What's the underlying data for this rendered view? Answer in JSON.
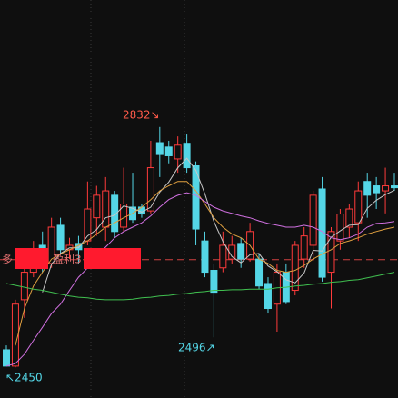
{
  "chart_data": {
    "type": "candlestick",
    "ylim": [
      2399,
      3035
    ],
    "up_color": "#ff3b3b",
    "down_color": "#54d6e6",
    "open": [
      2476,
      2450,
      2556,
      2600,
      2643,
      2614,
      2675,
      2636,
      2646,
      2650,
      2687,
      2672,
      2723,
      2672,
      2704,
      2704,
      2698,
      2807,
      2800,
      2781,
      2806,
      2770,
      2650,
      2603,
      2607,
      2621,
      2646,
      2621,
      2621,
      2582,
      2549,
      2600,
      2571,
      2621,
      2643,
      2733,
      2600,
      2650,
      2672,
      2679,
      2745,
      2738,
      2730,
      2738
    ],
    "high": [
      2483,
      2556,
      2614,
      2650,
      2665,
      2687,
      2687,
      2655,
      2658,
      2745,
      2738,
      2752,
      2730,
      2767,
      2759,
      2709,
      2810,
      2832,
      2810,
      2817,
      2820,
      2777,
      2665,
      2614,
      2665,
      2658,
      2655,
      2679,
      2629,
      2592,
      2614,
      2614,
      2650,
      2672,
      2730,
      2752,
      2672,
      2701,
      2709,
      2745,
      2759,
      2752,
      2767,
      2759
    ],
    "low": [
      2450,
      2448,
      2527,
      2592,
      2600,
      2607,
      2629,
      2621,
      2614,
      2643,
      2658,
      2650,
      2655,
      2665,
      2679,
      2687,
      2694,
      2752,
      2774,
      2759,
      2759,
      2643,
      2592,
      2496,
      2600,
      2614,
      2607,
      2617,
      2573,
      2534,
      2505,
      2549,
      2563,
      2607,
      2621,
      2585,
      2542,
      2636,
      2655,
      2650,
      2687,
      2701,
      2694,
      2730
    ],
    "close": [
      2450,
      2549,
      2600,
      2636,
      2607,
      2672,
      2636,
      2643,
      2636,
      2701,
      2723,
      2730,
      2665,
      2709,
      2684,
      2693,
      2767,
      2788,
      2786,
      2803,
      2767,
      2669,
      2600,
      2568,
      2643,
      2643,
      2621,
      2665,
      2578,
      2542,
      2600,
      2553,
      2643,
      2658,
      2723,
      2592,
      2665,
      2693,
      2701,
      2730,
      2723,
      2727,
      2738,
      2735
    ],
    "lines": [
      {
        "color": "#c8c8c8",
        "values": [
          null,
          null,
          null,
          null,
          2568,
          2613,
          2630,
          2639,
          2639,
          2658,
          2668,
          2687,
          2691,
          2706,
          2702,
          2696,
          2704,
          2728,
          2744,
          2767,
          2782,
          2763,
          2725,
          2681,
          2649,
          2625,
          2615,
          2628,
          2630,
          2610,
          2601,
          2588,
          2583,
          2599,
          2635,
          2634,
          2656,
          2666,
          2675,
          2676,
          2702,
          2715,
          2724,
          2731
        ]
      },
      {
        "color": "#e0a040",
        "values": [
          null,
          2483,
          2542,
          2578,
          2600,
          2621,
          2629,
          2636,
          2643,
          2650,
          2661,
          2672,
          2679,
          2687,
          2694,
          2704,
          2716,
          2730,
          2738,
          2745,
          2745,
          2730,
          2709,
          2687,
          2672,
          2661,
          2655,
          2643,
          2621,
          2614,
          2603,
          2600,
          2603,
          2611,
          2621,
          2629,
          2636,
          2646,
          2650,
          2655,
          2661,
          2665,
          2669,
          2672
        ]
      },
      {
        "color": "#d070e0",
        "values": [
          2450,
          2454,
          2469,
          2491,
          2512,
          2534,
          2549,
          2571,
          2592,
          2607,
          2626,
          2640,
          2655,
          2665,
          2672,
          2679,
          2690,
          2704,
          2716,
          2723,
          2727,
          2723,
          2713,
          2704,
          2698,
          2694,
          2690,
          2687,
          2682,
          2678,
          2675,
          2672,
          2672,
          2675,
          2672,
          2665,
          2655,
          2652,
          2655,
          2661,
          2672,
          2678,
          2679,
          2681
        ]
      },
      {
        "color": "#40c050",
        "values": [
          2582,
          2579,
          2576,
          2573,
          2571,
          2568,
          2565,
          2562,
          2560,
          2559,
          2557,
          2556,
          2556,
          2556,
          2557,
          2559,
          2560,
          2562,
          2563,
          2565,
          2566,
          2568,
          2569,
          2571,
          2571,
          2572,
          2572,
          2573,
          2573,
          2573,
          2575,
          2576,
          2578,
          2579,
          2581,
          2582,
          2584,
          2585,
          2587,
          2588,
          2591,
          2594,
          2597,
          2600
        ]
      }
    ],
    "position_line": 2620,
    "position_labels": [
      "多",
      "盈利3"
    ],
    "annotations": [
      {
        "label": "2832↘",
        "value": 2832
      },
      {
        "label": "2496↗",
        "value": 2496
      },
      {
        "label": "↖2450",
        "value": 2450
      }
    ]
  }
}
